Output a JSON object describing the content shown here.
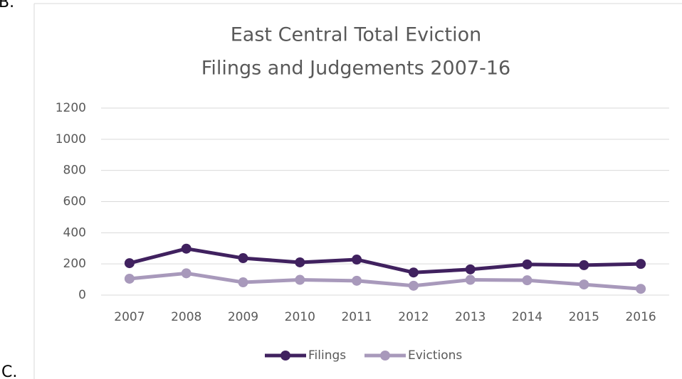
{
  "page_labels": [
    "B.",
    "C."
  ],
  "chart_data": {
    "type": "line",
    "title": [
      "East Central Total Eviction",
      "Filings and Judgements 2007-16"
    ],
    "categories": [
      "2007",
      "2008",
      "2009",
      "2010",
      "2011",
      "2012",
      "2013",
      "2014",
      "2015",
      "2016"
    ],
    "series": [
      {
        "name": "Filings",
        "color": "#40215f",
        "values": [
          205,
          298,
          237,
          210,
          228,
          145,
          165,
          197,
          192,
          200
        ]
      },
      {
        "name": "Evictions",
        "color": "#a899bb",
        "values": [
          105,
          140,
          82,
          98,
          92,
          60,
          98,
          95,
          68,
          40
        ]
      }
    ],
    "ylim": [
      0,
      1200
    ],
    "yticks": [
      0,
      200,
      400,
      600,
      800,
      1000,
      1200
    ],
    "grid": true,
    "legend": "bottom"
  }
}
